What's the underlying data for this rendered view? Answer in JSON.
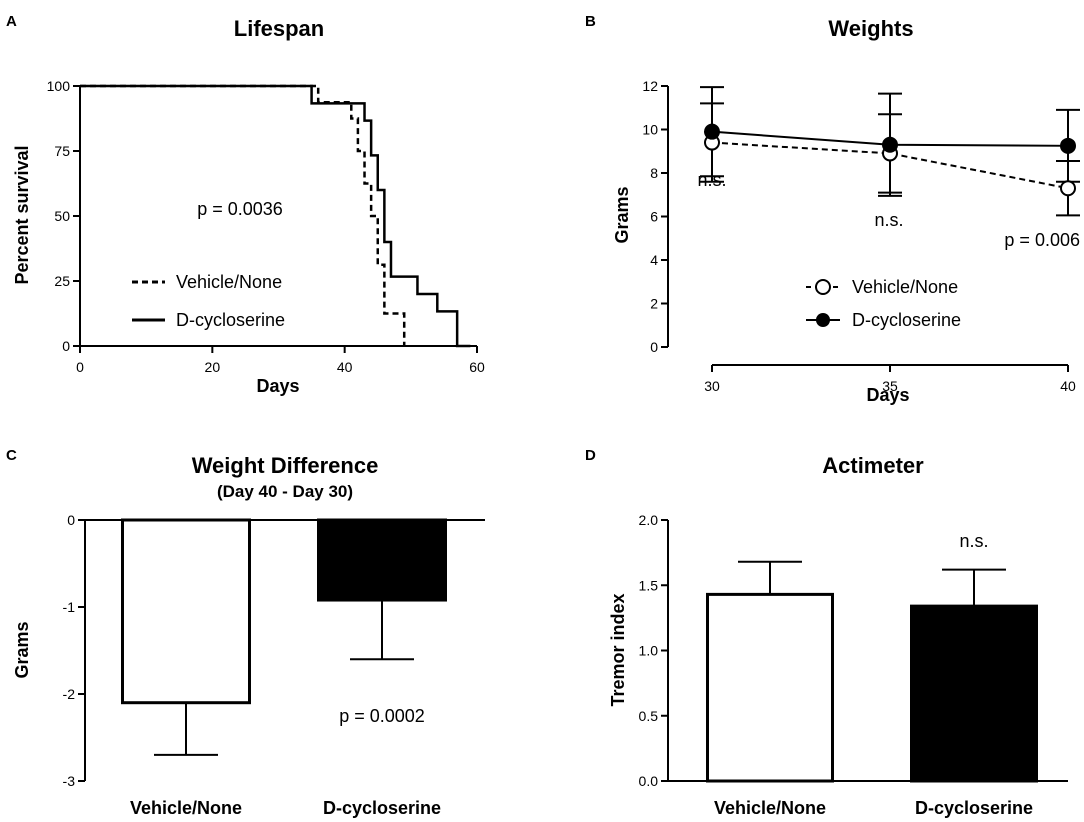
{
  "chart_data": [
    {
      "panel": "A",
      "type": "line",
      "subtype": "survival-step",
      "title": "Lifespan",
      "xlabel": "Days",
      "ylabel": "Percent survival",
      "xlim": [
        0,
        60
      ],
      "ylim": [
        0,
        100
      ],
      "xticks": [
        "0",
        "20",
        "40",
        "60"
      ],
      "yticks": [
        "0",
        "25",
        "50",
        "75",
        "100"
      ],
      "annotation": "p = 0.0036",
      "legend": [
        "Vehicle/None",
        "D-cycloserine"
      ],
      "series": [
        {
          "name": "Vehicle/None",
          "style": "dashed",
          "x": [
            0,
            36,
            41,
            42,
            43,
            44,
            45,
            46,
            49
          ],
          "y": [
            100,
            93.75,
            87.5,
            75,
            62.5,
            50,
            31.25,
            12.5,
            0
          ]
        },
        {
          "name": "D-cycloserine",
          "style": "solid",
          "x": [
            0,
            35,
            43,
            44,
            45,
            46,
            47,
            51,
            54,
            57,
            59
          ],
          "y": [
            100,
            93.3,
            86.7,
            73.3,
            60,
            40,
            26.7,
            20,
            13.3,
            0,
            0
          ]
        }
      ]
    },
    {
      "panel": "B",
      "type": "line",
      "title": "Weights",
      "xlabel": "Days",
      "ylabel": "Grams",
      "xlim": [
        30,
        40
      ],
      "ylim": [
        0,
        12
      ],
      "xticks": [
        "30",
        "35",
        "40"
      ],
      "yticks": [
        "0",
        "2",
        "4",
        "6",
        "8",
        "10",
        "12"
      ],
      "annotations": [
        "n.s.",
        "n.s.",
        "p = 0.006"
      ],
      "legend": [
        "Vehicle/None",
        "D-cycloserine"
      ],
      "series": [
        {
          "name": "Vehicle/None",
          "style": "dashed",
          "marker": "open-circle",
          "x": [
            30,
            35,
            40
          ],
          "y": [
            9.4,
            8.9,
            7.3
          ],
          "err": [
            1.8,
            1.8,
            1.25
          ]
        },
        {
          "name": "D-cycloserine",
          "style": "solid",
          "marker": "filled-circle",
          "x": [
            30,
            35,
            40
          ],
          "y": [
            9.9,
            9.3,
            9.25
          ],
          "err": [
            2.05,
            2.35,
            1.65
          ]
        }
      ]
    },
    {
      "panel": "C",
      "type": "bar",
      "title": "Weight Difference",
      "subtitle": "(Day 40 - Day 30)",
      "xlabel": "",
      "ylabel": "Grams",
      "ylim": [
        -3,
        0
      ],
      "yticks": [
        "-3",
        "-2",
        "-1",
        "0"
      ],
      "categories": [
        "Vehicle/None",
        "D-cycloserine"
      ],
      "values": [
        -2.1,
        -0.92
      ],
      "err": [
        0.6,
        0.68
      ],
      "annotation": "p = 0.0002"
    },
    {
      "panel": "D",
      "type": "bar",
      "title": "Actimeter",
      "xlabel": "",
      "ylabel": "Tremor index",
      "ylim": [
        0,
        2
      ],
      "yticks": [
        "0.0",
        "0.5",
        "1.0",
        "1.5",
        "2.0"
      ],
      "categories": [
        "Vehicle/None",
        "D-cycloserine"
      ],
      "values": [
        1.43,
        1.34
      ],
      "err": [
        0.25,
        0.28
      ],
      "annotation": "n.s."
    }
  ]
}
